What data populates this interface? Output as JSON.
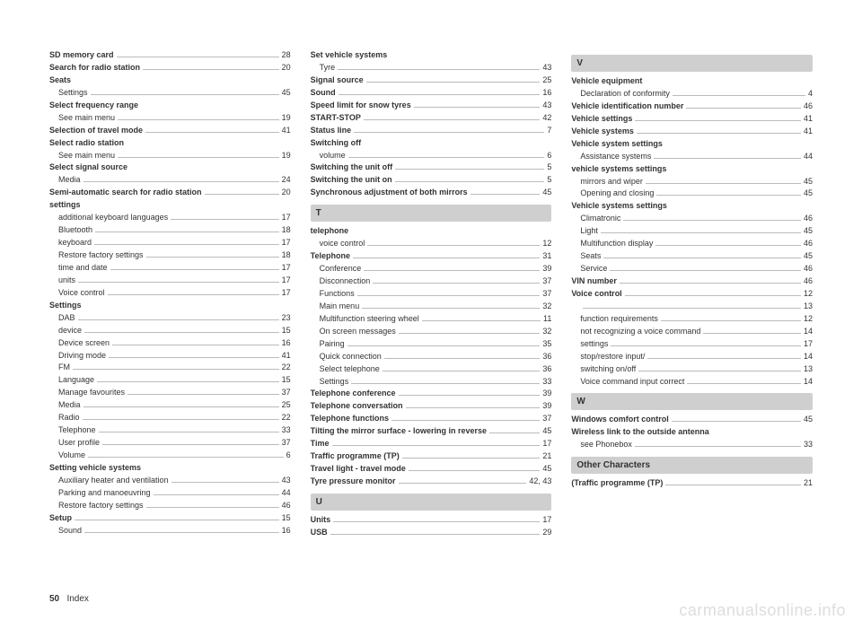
{
  "footer": {
    "page_num": "50",
    "section": "Index"
  },
  "watermark": "carmanualsonline.info",
  "columns": [
    {
      "items": [
        {
          "t": "entry",
          "label": "SD memory card",
          "page": "28",
          "bold": true
        },
        {
          "t": "entry",
          "label": "Search for radio station",
          "page": "20",
          "bold": true
        },
        {
          "t": "header-noline",
          "label": "Seats"
        },
        {
          "t": "sub",
          "label": "Settings",
          "page": "45"
        },
        {
          "t": "header-noline",
          "label": "Select frequency range"
        },
        {
          "t": "sub",
          "label": "See main menu",
          "page": "19"
        },
        {
          "t": "entry",
          "label": "Selection of travel mode",
          "page": "41",
          "bold": true
        },
        {
          "t": "header-noline",
          "label": "Select radio station"
        },
        {
          "t": "sub",
          "label": "See main menu",
          "page": "19"
        },
        {
          "t": "header-noline",
          "label": "Select signal source"
        },
        {
          "t": "sub",
          "label": "Media",
          "page": "24"
        },
        {
          "t": "entry",
          "label": "Semi-automatic search for radio station",
          "page": "20",
          "bold": true
        },
        {
          "t": "header-noline",
          "label": "settings"
        },
        {
          "t": "sub",
          "label": "additional keyboard languages",
          "page": "17"
        },
        {
          "t": "sub",
          "label": "Bluetooth",
          "page": "18"
        },
        {
          "t": "sub",
          "label": "keyboard",
          "page": "17"
        },
        {
          "t": "sub",
          "label": "Restore factory settings",
          "page": "18"
        },
        {
          "t": "sub",
          "label": "time and date",
          "page": "17"
        },
        {
          "t": "sub",
          "label": "units",
          "page": "17"
        },
        {
          "t": "sub",
          "label": "Voice control",
          "page": "17"
        },
        {
          "t": "header-noline",
          "label": "Settings"
        },
        {
          "t": "sub",
          "label": "DAB",
          "page": "23"
        },
        {
          "t": "sub",
          "label": "device",
          "page": "15"
        },
        {
          "t": "sub",
          "label": "Device screen",
          "page": "16"
        },
        {
          "t": "sub",
          "label": "Driving mode",
          "page": "41"
        },
        {
          "t": "sub",
          "label": "FM",
          "page": "22"
        },
        {
          "t": "sub",
          "label": "Language",
          "page": "15"
        },
        {
          "t": "sub",
          "label": "Manage favourites",
          "page": "37"
        },
        {
          "t": "sub",
          "label": "Media",
          "page": "25"
        },
        {
          "t": "sub",
          "label": "Radio",
          "page": "22"
        },
        {
          "t": "sub",
          "label": "Telephone",
          "page": "33"
        },
        {
          "t": "sub",
          "label": "User profile",
          "page": "37"
        },
        {
          "t": "sub",
          "label": "Volume",
          "page": "6"
        },
        {
          "t": "header-noline",
          "label": "Setting vehicle systems"
        },
        {
          "t": "sub",
          "label": "Auxiliary heater and ventilation",
          "page": "43"
        },
        {
          "t": "sub",
          "label": "Parking and manoeuvring",
          "page": "44"
        },
        {
          "t": "sub",
          "label": "Restore factory settings",
          "page": "46"
        },
        {
          "t": "entry",
          "label": "Setup",
          "page": "15",
          "bold": true
        },
        {
          "t": "sub",
          "label": "Sound",
          "page": "16"
        }
      ]
    },
    {
      "items": [
        {
          "t": "header-noline",
          "label": "Set vehicle systems"
        },
        {
          "t": "sub",
          "label": "Tyre",
          "page": "43"
        },
        {
          "t": "entry",
          "label": "Signal source",
          "page": "25",
          "bold": true
        },
        {
          "t": "entry",
          "label": "Sound",
          "page": "16",
          "bold": true
        },
        {
          "t": "entry",
          "label": "Speed limit for snow tyres",
          "page": "43",
          "bold": true
        },
        {
          "t": "entry",
          "label": "START-STOP",
          "page": "42",
          "bold": true
        },
        {
          "t": "entry",
          "label": "Status line",
          "page": "7",
          "bold": true
        },
        {
          "t": "header-noline",
          "label": "Switching off"
        },
        {
          "t": "sub",
          "label": "volume",
          "page": "6"
        },
        {
          "t": "entry",
          "label": "Switching the unit off",
          "page": "5",
          "bold": true
        },
        {
          "t": "entry",
          "label": "Switching the unit on",
          "page": "5",
          "bold": true
        },
        {
          "t": "entry",
          "label": "Synchronous adjustment of both mirrors",
          "page": "45",
          "bold": true
        },
        {
          "t": "letter",
          "label": "T"
        },
        {
          "t": "header-noline",
          "label": "telephone"
        },
        {
          "t": "sub",
          "label": "voice control",
          "page": "12"
        },
        {
          "t": "entry",
          "label": "Telephone",
          "page": "31",
          "bold": true
        },
        {
          "t": "sub",
          "label": "Conference",
          "page": "39"
        },
        {
          "t": "sub",
          "label": "Disconnection",
          "page": "37"
        },
        {
          "t": "sub",
          "label": "Functions",
          "page": "37"
        },
        {
          "t": "sub",
          "label": "Main menu",
          "page": "32"
        },
        {
          "t": "sub",
          "label": "Multifunction steering wheel",
          "page": "11"
        },
        {
          "t": "sub",
          "label": "On screen messages",
          "page": "32"
        },
        {
          "t": "sub",
          "label": "Pairing",
          "page": "35"
        },
        {
          "t": "sub",
          "label": "Quick connection",
          "page": "36"
        },
        {
          "t": "sub",
          "label": "Select telephone",
          "page": "36"
        },
        {
          "t": "sub",
          "label": "Settings",
          "page": "33"
        },
        {
          "t": "entry",
          "label": "Telephone conference",
          "page": "39",
          "bold": true
        },
        {
          "t": "entry",
          "label": "Telephone conversation",
          "page": "39",
          "bold": true
        },
        {
          "t": "entry",
          "label": "Telephone functions",
          "page": "37",
          "bold": true
        },
        {
          "t": "entry",
          "label": "Tilting the mirror surface - lowering in reverse",
          "page": "45",
          "bold": true
        },
        {
          "t": "entry",
          "label": "Time",
          "page": "17",
          "bold": true
        },
        {
          "t": "entry",
          "label": "Traffic programme (TP)",
          "page": "21",
          "bold": true
        },
        {
          "t": "entry",
          "label": "Travel light - travel mode",
          "page": "45",
          "bold": true
        },
        {
          "t": "entry",
          "label": "Tyre pressure monitor",
          "page": "42, 43",
          "bold": true
        },
        {
          "t": "letter",
          "label": "U"
        },
        {
          "t": "entry",
          "label": "Units",
          "page": "17",
          "bold": true
        },
        {
          "t": "entry",
          "label": "USB",
          "page": "29",
          "bold": true
        }
      ]
    },
    {
      "items": [
        {
          "t": "letter",
          "label": "V"
        },
        {
          "t": "header-noline",
          "label": "Vehicle equipment"
        },
        {
          "t": "sub",
          "label": "Declaration of conformity",
          "page": "4"
        },
        {
          "t": "entry",
          "label": "Vehicle identification number",
          "page": "46",
          "bold": true
        },
        {
          "t": "entry",
          "label": "Vehicle settings",
          "page": "41",
          "bold": true
        },
        {
          "t": "entry",
          "label": "Vehicle systems",
          "page": "41",
          "bold": true
        },
        {
          "t": "header-noline",
          "label": "Vehicle system settings"
        },
        {
          "t": "sub",
          "label": "Assistance systems",
          "page": "44"
        },
        {
          "t": "header-noline",
          "label": "vehicle systems settings"
        },
        {
          "t": "sub",
          "label": "mirrors and wiper",
          "page": "45"
        },
        {
          "t": "sub",
          "label": "Opening and closing",
          "page": "45"
        },
        {
          "t": "header-noline",
          "label": "Vehicle systems settings"
        },
        {
          "t": "sub",
          "label": "Climatronic",
          "page": "46"
        },
        {
          "t": "sub",
          "label": "Light",
          "page": "45"
        },
        {
          "t": "sub",
          "label": "Multifunction display",
          "page": "46"
        },
        {
          "t": "sub",
          "label": "Seats",
          "page": "45"
        },
        {
          "t": "sub",
          "label": "Service",
          "page": "46"
        },
        {
          "t": "entry",
          "label": "VIN number",
          "page": "46",
          "bold": true
        },
        {
          "t": "entry",
          "label": "Voice control",
          "page": "12",
          "bold": true
        },
        {
          "t": "sub-noline",
          "label": "",
          "page": "13"
        },
        {
          "t": "sub",
          "label": "function requirements",
          "page": "12"
        },
        {
          "t": "sub",
          "label": "not recognizing a voice command",
          "page": "14"
        },
        {
          "t": "sub",
          "label": "settings",
          "page": "17"
        },
        {
          "t": "sub",
          "label": "stop/restore input/",
          "page": "14"
        },
        {
          "t": "sub",
          "label": "switching on/off",
          "page": "13"
        },
        {
          "t": "sub",
          "label": "Voice command input correct",
          "page": "14"
        },
        {
          "t": "letter",
          "label": "W"
        },
        {
          "t": "entry",
          "label": "Windows comfort control",
          "page": "45",
          "bold": true
        },
        {
          "t": "header-noline",
          "label": "Wireless link to the outside antenna"
        },
        {
          "t": "sub",
          "label": "see Phonebox",
          "page": "33"
        },
        {
          "t": "letter",
          "label": "Other Characters"
        },
        {
          "t": "entry",
          "label": "(Traffic programme (TP)",
          "page": "21",
          "bold": true
        }
      ]
    }
  ]
}
